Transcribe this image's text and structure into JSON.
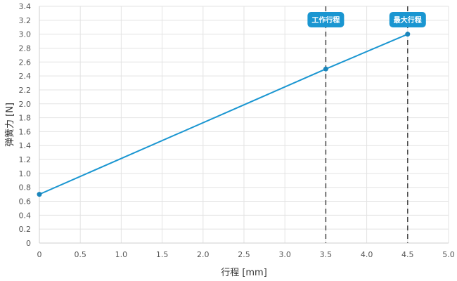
{
  "chart_data": {
    "type": "line",
    "xlabel": "行程 [mm]",
    "ylabel": "弹簧力 [N]",
    "xlim": [
      0,
      5
    ],
    "ylim": [
      0,
      3.4
    ],
    "x_ticks": [
      "0",
      "0.5",
      "1.0",
      "1.5",
      "2.0",
      "2.5",
      "3.0",
      "3.5",
      "4.0",
      "4.5",
      "5.0"
    ],
    "y_ticks": [
      "0",
      "0.2",
      "0.4",
      "0.6",
      "0.8",
      "1.0",
      "1.2",
      "1.4",
      "1.6",
      "1.8",
      "2.0",
      "2.2",
      "2.4",
      "2.6",
      "2.8",
      "3.0",
      "3.2",
      "3.4"
    ],
    "grid": true,
    "series": [
      {
        "x": [
          0,
          3.5,
          4.5
        ],
        "y": [
          0.7,
          2.5,
          3.0
        ],
        "color": "#1a96d1"
      }
    ],
    "markers": [
      {
        "x": 3.5,
        "label": "工作行程"
      },
      {
        "x": 4.5,
        "label": "最大行程"
      }
    ]
  }
}
